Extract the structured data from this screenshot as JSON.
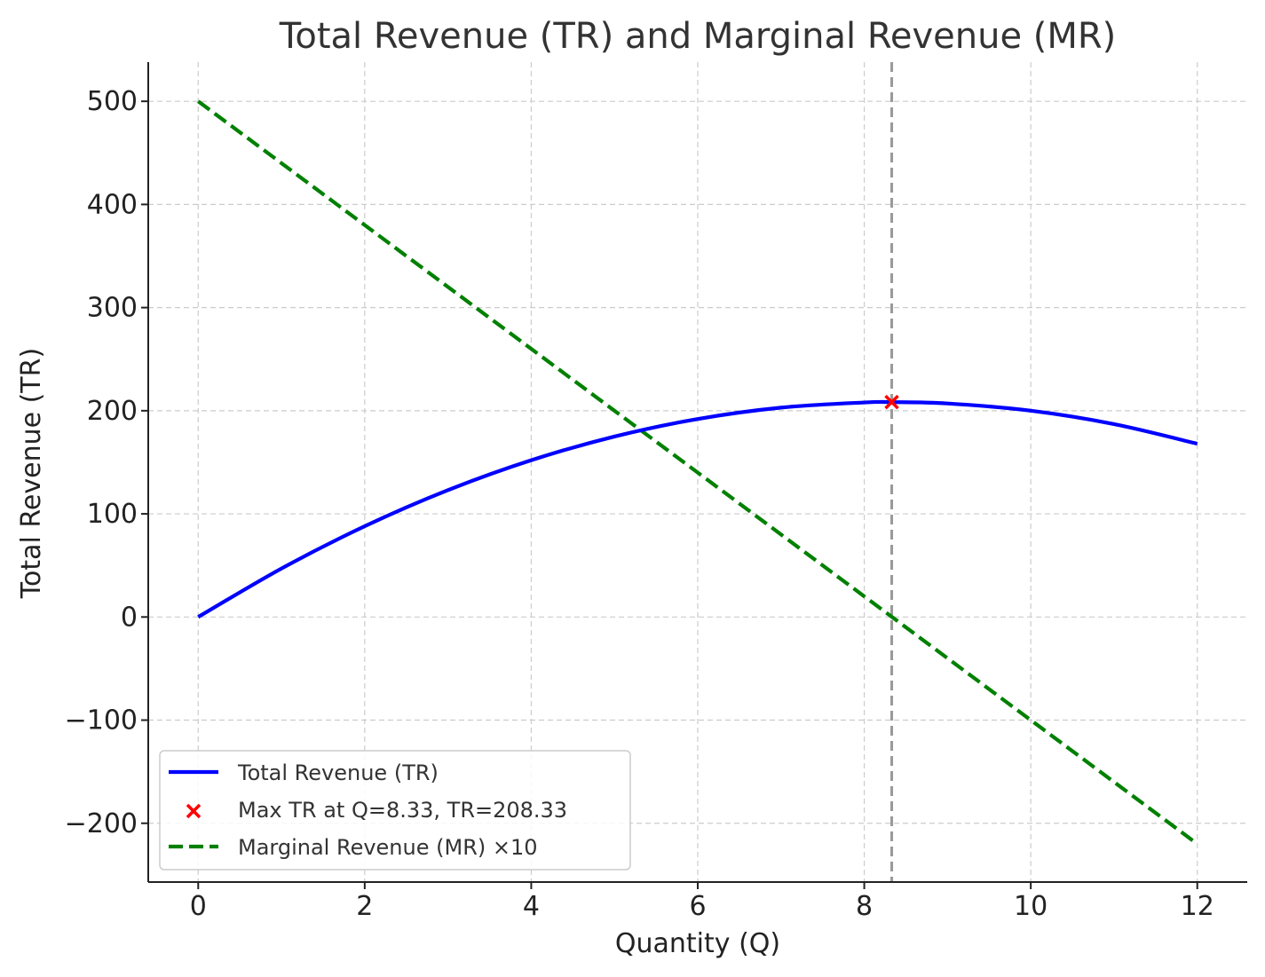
{
  "chart_data": {
    "type": "line",
    "title": "Total Revenue (TR) and Marginal Revenue (MR)",
    "xlabel": "Quantity (Q)",
    "ylabel": "Total Revenue (TR)",
    "xlim": [
      -0.6,
      12.6
    ],
    "ylim": [
      -257,
      538
    ],
    "x_ticks": [
      0,
      2,
      4,
      6,
      8,
      10,
      12
    ],
    "x_tick_labels": [
      "0",
      "2",
      "4",
      "6",
      "8",
      "10",
      "12"
    ],
    "y_ticks": [
      -200,
      -100,
      0,
      100,
      200,
      300,
      400,
      500
    ],
    "y_tick_labels": [
      "−200",
      "−100",
      "0",
      "100",
      "200",
      "300",
      "400",
      "500"
    ],
    "grid": true,
    "legend_position": "lower-left",
    "series": [
      {
        "name": "Total Revenue (TR)",
        "kind": "line",
        "style": "solid",
        "color": "#0000ff",
        "x": [
          0,
          1,
          2,
          3,
          4,
          5,
          6,
          7,
          8,
          8.33,
          9,
          10,
          11,
          12
        ],
        "y": [
          0,
          47.0,
          88.0,
          123.0,
          152.0,
          175.0,
          192.0,
          203.0,
          208.0,
          208.33,
          207.0,
          200.0,
          187.0,
          168.0
        ]
      },
      {
        "name": "Max TR at Q=8.33, TR=208.33",
        "kind": "scatter",
        "marker": "x",
        "color": "#ff0000",
        "x": [
          8.33
        ],
        "y": [
          208.33
        ]
      },
      {
        "name": "Marginal Revenue (MR) ×10",
        "kind": "line",
        "style": "dashed",
        "color": "#008000",
        "x": [
          0,
          12
        ],
        "y": [
          500,
          -220
        ]
      }
    ],
    "reference_lines": [
      {
        "orientation": "vertical",
        "x": 8.33,
        "color": "#999999",
        "style": "dashed"
      }
    ]
  }
}
